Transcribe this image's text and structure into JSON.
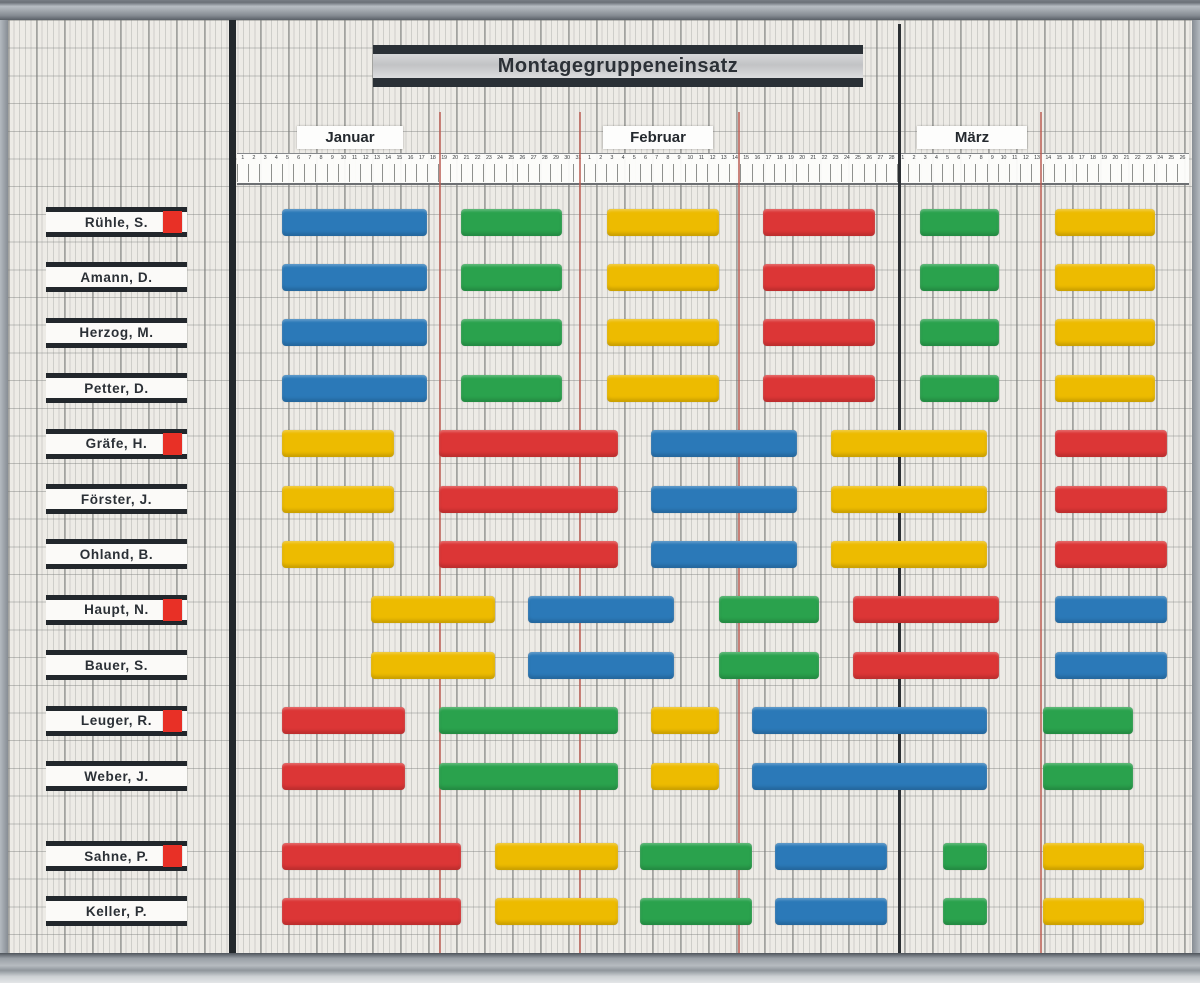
{
  "board": {
    "colors": {
      "red": "#dc3636",
      "blue": "#2b79b8",
      "green": "#2aa24d",
      "yellow": "#edbb00",
      "marker": "#e83026",
      "week_line": "#b95c52",
      "month_line": "#2b2f33"
    },
    "week_line_days": [
      19,
      31.5,
      45.75,
      72.7
    ]
  },
  "chart_data": {
    "type": "gantt",
    "title": "Montagegruppeneinsatz",
    "time_axis": {
      "unit": "days",
      "day_index_origin": "1 = Januar 1",
      "visible_days": 85
    },
    "months": [
      {
        "name": "Januar",
        "days": 31
      },
      {
        "name": "Februar",
        "days": 28
      },
      {
        "name": "März",
        "days": 31,
        "days_visible": 26
      }
    ],
    "bar_colors": [
      "blue",
      "green",
      "yellow",
      "red"
    ],
    "rows": [
      {
        "name": "Rühle, S.",
        "flagged": true,
        "segments": [
          {
            "color": "blue",
            "start": 5,
            "end": 17
          },
          {
            "color": "green",
            "start": 21,
            "end": 29
          },
          {
            "color": "yellow",
            "start": 34,
            "end": 43
          },
          {
            "color": "red",
            "start": 48,
            "end": 57
          },
          {
            "color": "green",
            "start": 62,
            "end": 68
          },
          {
            "color": "yellow",
            "start": 74,
            "end": 82
          }
        ]
      },
      {
        "name": "Amann, D.",
        "flagged": false,
        "segments": [
          {
            "color": "blue",
            "start": 5,
            "end": 17
          },
          {
            "color": "green",
            "start": 21,
            "end": 29
          },
          {
            "color": "yellow",
            "start": 34,
            "end": 43
          },
          {
            "color": "red",
            "start": 48,
            "end": 57
          },
          {
            "color": "green",
            "start": 62,
            "end": 68
          },
          {
            "color": "yellow",
            "start": 74,
            "end": 82
          }
        ]
      },
      {
        "name": "Herzog, M.",
        "flagged": false,
        "segments": [
          {
            "color": "blue",
            "start": 5,
            "end": 17
          },
          {
            "color": "green",
            "start": 21,
            "end": 29
          },
          {
            "color": "yellow",
            "start": 34,
            "end": 43
          },
          {
            "color": "red",
            "start": 48,
            "end": 57
          },
          {
            "color": "green",
            "start": 62,
            "end": 68
          },
          {
            "color": "yellow",
            "start": 74,
            "end": 82
          }
        ]
      },
      {
        "name": "Petter, D.",
        "flagged": false,
        "segments": [
          {
            "color": "blue",
            "start": 5,
            "end": 17
          },
          {
            "color": "green",
            "start": 21,
            "end": 29
          },
          {
            "color": "yellow",
            "start": 34,
            "end": 43
          },
          {
            "color": "red",
            "start": 48,
            "end": 57
          },
          {
            "color": "green",
            "start": 62,
            "end": 68
          },
          {
            "color": "yellow",
            "start": 74,
            "end": 82
          }
        ]
      },
      {
        "name": "Gräfe, H.",
        "flagged": true,
        "segments": [
          {
            "color": "yellow",
            "start": 5,
            "end": 14
          },
          {
            "color": "red",
            "start": 19,
            "end": 34
          },
          {
            "color": "blue",
            "start": 38,
            "end": 50
          },
          {
            "color": "yellow",
            "start": 54,
            "end": 67
          },
          {
            "color": "red",
            "start": 74,
            "end": 83
          }
        ]
      },
      {
        "name": "Förster, J.",
        "flagged": false,
        "segments": [
          {
            "color": "yellow",
            "start": 5,
            "end": 14
          },
          {
            "color": "red",
            "start": 19,
            "end": 34
          },
          {
            "color": "blue",
            "start": 38,
            "end": 50
          },
          {
            "color": "yellow",
            "start": 54,
            "end": 67
          },
          {
            "color": "red",
            "start": 74,
            "end": 83
          }
        ]
      },
      {
        "name": "Ohland, B.",
        "flagged": false,
        "segments": [
          {
            "color": "yellow",
            "start": 5,
            "end": 14
          },
          {
            "color": "red",
            "start": 19,
            "end": 34
          },
          {
            "color": "blue",
            "start": 38,
            "end": 50
          },
          {
            "color": "yellow",
            "start": 54,
            "end": 67
          },
          {
            "color": "red",
            "start": 74,
            "end": 83
          }
        ]
      },
      {
        "name": "Haupt, N.",
        "flagged": true,
        "segments": [
          {
            "color": "yellow",
            "start": 13,
            "end": 23
          },
          {
            "color": "blue",
            "start": 27,
            "end": 39
          },
          {
            "color": "green",
            "start": 44,
            "end": 52
          },
          {
            "color": "red",
            "start": 56,
            "end": 68
          },
          {
            "color": "blue",
            "start": 74,
            "end": 83
          }
        ]
      },
      {
        "name": "Bauer, S.",
        "flagged": false,
        "segments": [
          {
            "color": "yellow",
            "start": 13,
            "end": 23
          },
          {
            "color": "blue",
            "start": 27,
            "end": 39
          },
          {
            "color": "green",
            "start": 44,
            "end": 52
          },
          {
            "color": "red",
            "start": 56,
            "end": 68
          },
          {
            "color": "blue",
            "start": 74,
            "end": 83
          }
        ]
      },
      {
        "name": "Leuger, R.",
        "flagged": true,
        "segments": [
          {
            "color": "red",
            "start": 5,
            "end": 15
          },
          {
            "color": "green",
            "start": 19,
            "end": 34
          },
          {
            "color": "yellow",
            "start": 38,
            "end": 43
          },
          {
            "color": "blue",
            "start": 47,
            "end": 67
          },
          {
            "color": "green",
            "start": 73,
            "end": 80
          }
        ]
      },
      {
        "name": "Weber, J.",
        "flagged": false,
        "segments": [
          {
            "color": "red",
            "start": 5,
            "end": 15
          },
          {
            "color": "green",
            "start": 19,
            "end": 34
          },
          {
            "color": "yellow",
            "start": 38,
            "end": 43
          },
          {
            "color": "blue",
            "start": 47,
            "end": 67
          },
          {
            "color": "green",
            "start": 73,
            "end": 80
          }
        ]
      },
      {
        "name": "Sahne, P.",
        "flagged": true,
        "gap_before": true,
        "segments": [
          {
            "color": "red",
            "start": 5,
            "end": 20
          },
          {
            "color": "yellow",
            "start": 24,
            "end": 34
          },
          {
            "color": "green",
            "start": 37,
            "end": 46
          },
          {
            "color": "blue",
            "start": 49,
            "end": 58
          },
          {
            "color": "green",
            "start": 64,
            "end": 67
          },
          {
            "color": "yellow",
            "start": 73,
            "end": 81
          }
        ]
      },
      {
        "name": "Keller, P.",
        "flagged": false,
        "segments": [
          {
            "color": "red",
            "start": 5,
            "end": 20
          },
          {
            "color": "yellow",
            "start": 24,
            "end": 34
          },
          {
            "color": "green",
            "start": 37,
            "end": 46
          },
          {
            "color": "blue",
            "start": 49,
            "end": 58
          },
          {
            "color": "green",
            "start": 64,
            "end": 67
          },
          {
            "color": "yellow",
            "start": 73,
            "end": 81
          }
        ]
      }
    ]
  }
}
